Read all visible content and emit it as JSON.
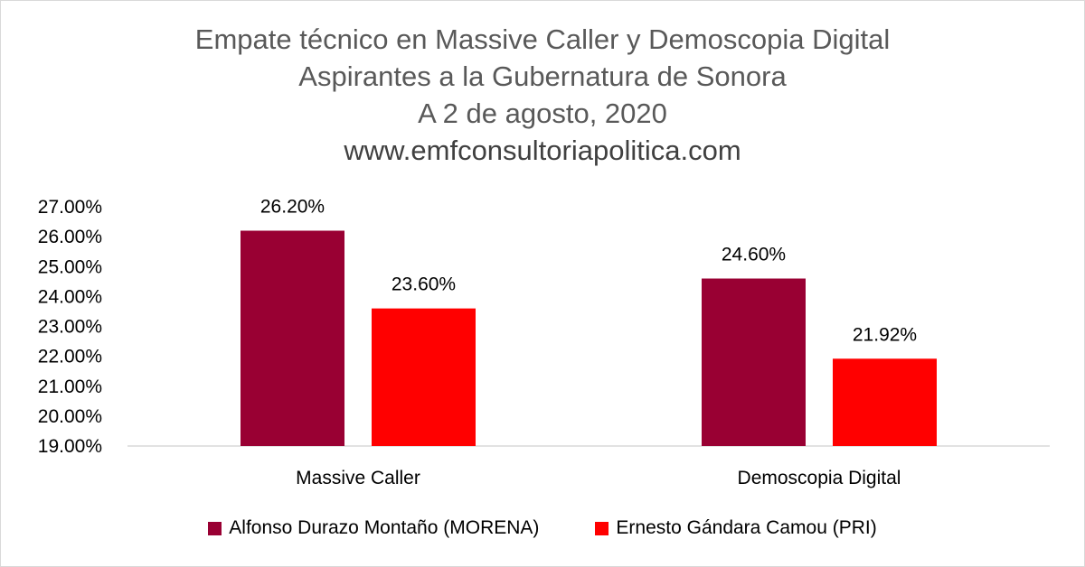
{
  "title_lines": [
    "Empate técnico en Massive Caller y Demoscopia Digital",
    "Aspirantes a la Gubernatura de Sonora",
    "A 2 de agosto, 2020",
    "www.emfconsultoriapolitica.com"
  ],
  "chart_data": {
    "type": "bar",
    "categories": [
      "Massive Caller",
      "Demoscopia Digital"
    ],
    "series": [
      {
        "name": "Alfonso Durazo Montaño (MORENA)",
        "values": [
          26.2,
          24.6
        ],
        "labels": [
          "26.20%",
          "24.60%"
        ],
        "color": "#990033"
      },
      {
        "name": "Ernesto Gándara Camou (PRI)",
        "values": [
          23.6,
          21.92
        ],
        "labels": [
          "23.60%",
          "21.92%"
        ],
        "color": "#ff0000"
      }
    ],
    "ylim": [
      19,
      27
    ],
    "yticks": [
      "19.00%",
      "20.00%",
      "21.00%",
      "22.00%",
      "23.00%",
      "24.00%",
      "25.00%",
      "26.00%",
      "27.00%"
    ],
    "grid": false,
    "legend": "bottom"
  }
}
